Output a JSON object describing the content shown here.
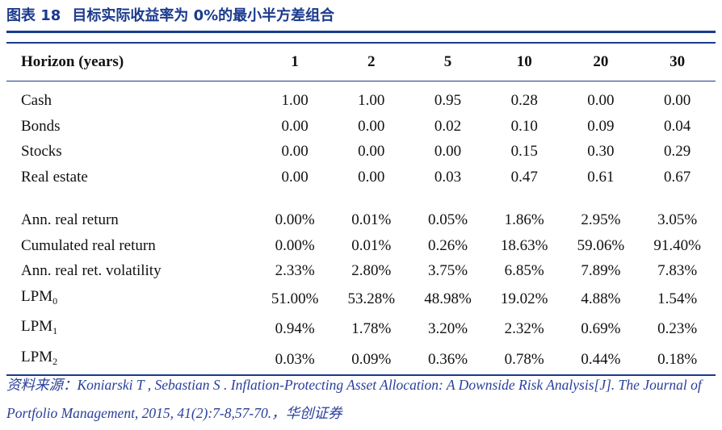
{
  "title": {
    "label": "图表 18",
    "text": "目标实际收益率为 0%的最小半方差组合"
  },
  "table": {
    "header": [
      "Horizon (years)",
      "1",
      "2",
      "5",
      "10",
      "20",
      "30"
    ],
    "weights": [
      {
        "label": "Cash",
        "values": [
          "1.00",
          "1.00",
          "0.95",
          "0.28",
          "0.00",
          "0.00"
        ]
      },
      {
        "label": "Bonds",
        "values": [
          "0.00",
          "0.00",
          "0.02",
          "0.10",
          "0.09",
          "0.04"
        ]
      },
      {
        "label": "Stocks",
        "values": [
          "0.00",
          "0.00",
          "0.00",
          "0.15",
          "0.30",
          "0.29"
        ]
      },
      {
        "label": "Real estate",
        "values": [
          "0.00",
          "0.00",
          "0.03",
          "0.47",
          "0.61",
          "0.67"
        ]
      }
    ],
    "stats": [
      {
        "label": "Ann. real return",
        "sub": "",
        "values": [
          "0.00%",
          "0.01%",
          "0.05%",
          "1.86%",
          "2.95%",
          "3.05%"
        ]
      },
      {
        "label": "Cumulated real return",
        "sub": "",
        "values": [
          "0.00%",
          "0.01%",
          "0.26%",
          "18.63%",
          "59.06%",
          "91.40%"
        ]
      },
      {
        "label": "Ann. real ret. volatility",
        "sub": "",
        "values": [
          "2.33%",
          "2.80%",
          "3.75%",
          "6.85%",
          "7.89%",
          "7.83%"
        ]
      },
      {
        "label": "LPM",
        "sub": "0",
        "values": [
          "51.00%",
          "53.28%",
          "48.98%",
          "19.02%",
          "4.88%",
          "1.54%"
        ]
      },
      {
        "label": "LPM",
        "sub": "1",
        "values": [
          "0.94%",
          "1.78%",
          "3.20%",
          "2.32%",
          "0.69%",
          "0.23%"
        ]
      },
      {
        "label": "LPM",
        "sub": "2",
        "values": [
          "0.03%",
          "0.09%",
          "0.36%",
          "0.78%",
          "0.44%",
          "0.18%"
        ]
      }
    ]
  },
  "source": "资料来源：Koniarski T , Sebastian S . Inflation-Protecting Asset Allocation: A Downside Risk Analysis[J]. The Journal of Portfolio Management, 2015, 41(2):7-8,57-70.，华创证券",
  "colors": {
    "accent": "#1a3a8c",
    "source_text": "#2a3f9a"
  }
}
